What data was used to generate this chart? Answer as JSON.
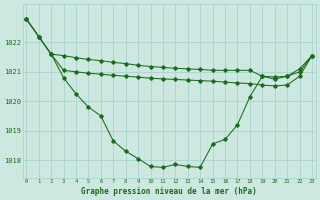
{
  "title": "Graphe pression niveau de la mer (hPa)",
  "hours": [
    0,
    1,
    2,
    3,
    4,
    5,
    6,
    7,
    8,
    9,
    10,
    11,
    12,
    13,
    14,
    15,
    16,
    17,
    18,
    19,
    20,
    21,
    22,
    23
  ],
  "line_cur": [
    1022.8,
    1022.2,
    1021.6,
    1020.8,
    1020.25,
    1019.8,
    1019.5,
    1018.65,
    1018.3,
    1018.05,
    1017.78,
    1017.75,
    1017.85,
    1017.78,
    1017.75,
    1018.55,
    1018.7,
    1019.2,
    1020.15,
    1020.85,
    1020.75,
    1020.85,
    1021.0,
    1021.55
  ],
  "line_max": [
    1022.8,
    1022.2,
    1021.6,
    1021.55,
    1021.48,
    1021.42,
    1021.38,
    1021.32,
    1021.28,
    1021.22,
    1021.18,
    1021.15,
    1021.12,
    1021.1,
    1021.08,
    1021.05,
    1021.05,
    1021.05,
    1021.05,
    1020.85,
    1020.82,
    1020.85,
    1021.1,
    1021.55
  ],
  "line_mid": [
    1022.8,
    1022.2,
    1021.6,
    1021.05,
    1021.0,
    1020.95,
    1020.92,
    1020.88,
    1020.85,
    1020.82,
    1020.78,
    1020.76,
    1020.74,
    1020.72,
    1020.7,
    1020.68,
    1020.65,
    1020.62,
    1020.6,
    1020.55,
    1020.52,
    1020.55,
    1020.85,
    1021.55
  ],
  "bg_color": "#cce8e0",
  "grid_color": "#aad4cc",
  "line_color": "#1a6b1a",
  "ylim": [
    1017.4,
    1023.3
  ],
  "yticks": [
    1018,
    1019,
    1020,
    1021,
    1022
  ],
  "figsize": [
    3.2,
    2.0
  ],
  "dpi": 100
}
